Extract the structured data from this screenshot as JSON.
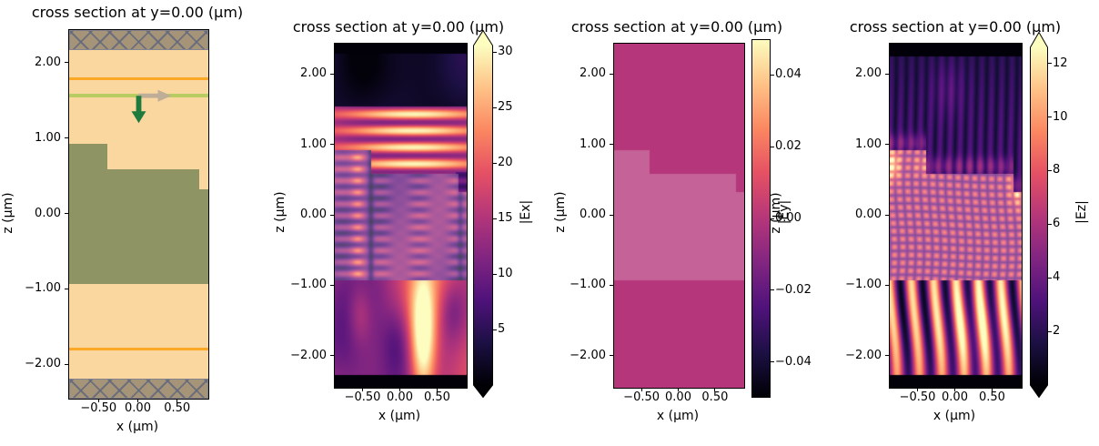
{
  "figure": {
    "background": "#ffffff",
    "n_panels": 4
  },
  "chart_data": [
    {
      "type": "structure-cross-section",
      "title": "cross section at y=0.00 (μm)",
      "xlabel": "x (μm)",
      "ylabel": "z (μm)",
      "xlim": [
        -0.885,
        0.885
      ],
      "zlim": [
        -2.44,
        2.44
      ],
      "xticks": [
        -0.5,
        0.0,
        0.5
      ],
      "xticklabels": [
        "−0.50",
        "0.00",
        "0.50"
      ],
      "yticks": [
        2,
        1,
        0,
        -1,
        -2
      ],
      "yticklabels": [
        "2.00",
        "1.00",
        "0.00",
        "−1.00",
        "−2.00"
      ],
      "colors": {
        "background_medium": "#fbd7a0",
        "structure": "#8f9465",
        "pml_hatch_fill": "#a59478",
        "pml_hatch_line": "#62687c",
        "monitor_line": "#fca827",
        "source_line": "#b9cc62",
        "source_arrow_down": "#1e7b3d",
        "source_arrow_right": "#bfae97"
      },
      "geometry": {
        "pml_bands_z": [
          [
            2.18,
            2.44
          ],
          [
            -2.44,
            -2.18
          ]
        ],
        "monitor_lines_z": [
          1.79,
          -1.78
        ],
        "source_line_z": 1.57,
        "arrow_origin": {
          "x": 0.0,
          "z": 1.57
        },
        "structure": {
          "bottom_z": -0.92,
          "segments": [
            {
              "x_from": -0.885,
              "x_to": -0.4,
              "top_z": 0.93
            },
            {
              "x_from": -0.4,
              "x_to": 0.77,
              "top_z": 0.6
            },
            {
              "x_from": 0.77,
              "x_to": 0.885,
              "top_z": 0.33
            }
          ]
        }
      }
    },
    {
      "type": "heatmap",
      "field": "Ex",
      "title": "cross section at y=0.00 (μm)",
      "xlabel": "x (μm)",
      "ylabel": "z (μm)",
      "cmap": "magma",
      "clim": [
        0,
        30.6
      ],
      "extend": "both",
      "xlim": [
        -0.885,
        0.885
      ],
      "zlim": [
        -2.44,
        2.44
      ],
      "xticks": [
        -0.5,
        0.0,
        0.5
      ],
      "xticklabels": [
        "−0.50",
        "0.00",
        "0.50"
      ],
      "yticks": [
        2,
        1,
        0,
        -1,
        -2
      ],
      "yticklabels": [
        "2.00",
        "1.00",
        "0.00",
        "−1.00",
        "−2.00"
      ],
      "colorbar": {
        "label": "|Ex|",
        "ticks": [
          30,
          25,
          20,
          15,
          10,
          5
        ],
        "ticklabels": [
          "30",
          "25",
          "20",
          "15",
          "10",
          "5"
        ]
      },
      "regions": {
        "black_band_above_z": 2.3,
        "black_band_below_z": -2.26,
        "dark_zone_z": [
          1.55,
          2.3
        ],
        "bright_fringe_zone_z": [
          0.6,
          1.55
        ],
        "fringe_period_um": 0.235,
        "bright_column_in_substrate_x": 0.33,
        "structure_overlay_alpha": 0.22
      }
    },
    {
      "type": "heatmap",
      "field": "Ey",
      "title": "cross section at y=0.00 (μm)",
      "xlabel": "x (μm)",
      "ylabel": "z (μm)",
      "cmap": "magma",
      "clim": [
        -0.05,
        0.05
      ],
      "extend": "neither",
      "uniform_value": 0.0,
      "xlim": [
        -0.885,
        0.885
      ],
      "zlim": [
        -2.44,
        2.44
      ],
      "xticks": [
        -0.5,
        0.0,
        0.5
      ],
      "xticklabels": [
        "−0.50",
        "0.00",
        "0.50"
      ],
      "yticks": [
        2,
        1,
        0,
        -1,
        -2
      ],
      "yticklabels": [
        "2.00",
        "1.00",
        "0.00",
        "−1.00",
        "−2.00"
      ],
      "colorbar": {
        "label": "|Ey|",
        "ticks": [
          0.04,
          0.02,
          0.0,
          -0.02,
          -0.04
        ],
        "ticklabels": [
          "0.04",
          "0.02",
          "0.00",
          "−0.02",
          "−0.04"
        ]
      },
      "regions": {
        "structure_overlay_alpha": 0.22
      }
    },
    {
      "type": "heatmap",
      "field": "Ez",
      "title": "cross section at y=0.00 (μm)",
      "xlabel": "x (μm)",
      "ylabel": "z (μm)",
      "cmap": "magma",
      "clim": [
        0,
        12.6
      ],
      "extend": "both",
      "xlim": [
        -0.885,
        0.885
      ],
      "zlim": [
        -2.44,
        2.44
      ],
      "xticks": [
        -0.5,
        0.0,
        0.5
      ],
      "xticklabels": [
        "−0.50",
        "0.00",
        "0.50"
      ],
      "yticks": [
        2,
        1,
        0,
        -1,
        -2
      ],
      "yticklabels": [
        "2.00",
        "1.00",
        "0.00",
        "−1.00",
        "−2.00"
      ],
      "colorbar": {
        "label": "|Ez|",
        "ticks": [
          12,
          10,
          8,
          6,
          4,
          2
        ],
        "ticklabels": [
          "12",
          "10",
          "8",
          "6",
          "4",
          "2"
        ]
      },
      "regions": {
        "black_band_above_z": 2.26,
        "black_band_below_z": -2.26,
        "vertical_filament_zone_z": [
          0.93,
          2.26
        ],
        "bright_streak_zone_z": [
          -2.26,
          -0.92
        ],
        "structure_overlay_alpha": 0.22
      }
    }
  ]
}
